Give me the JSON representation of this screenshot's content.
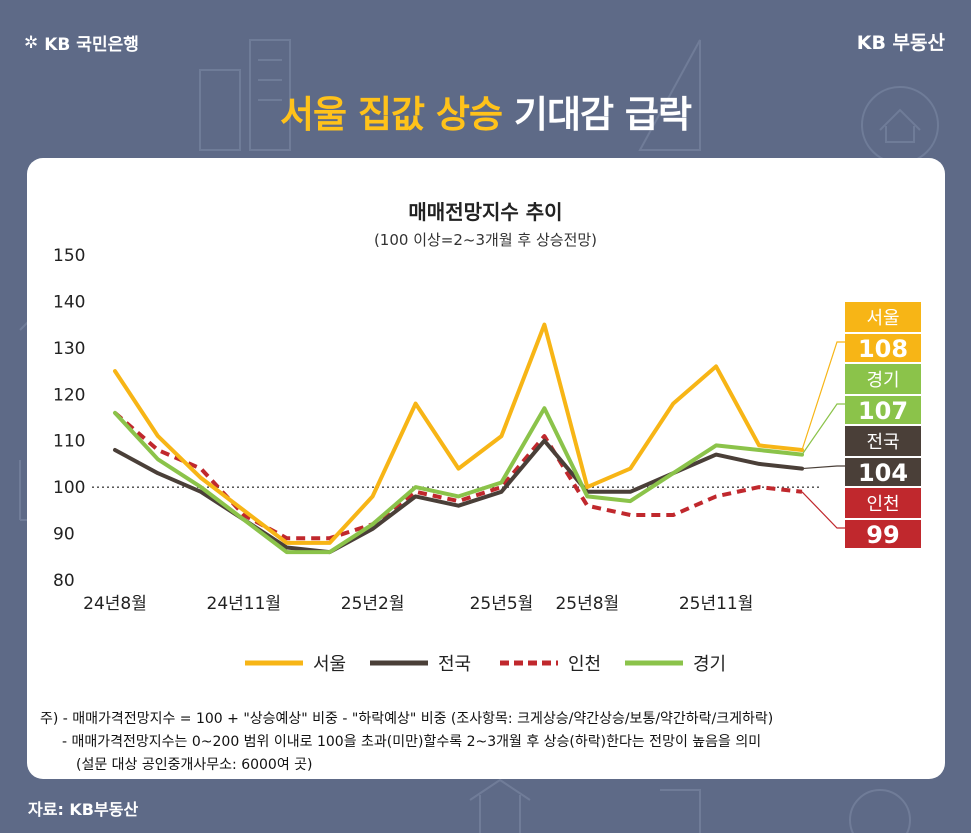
{
  "brand": {
    "left": "KB 국민은행",
    "right": "KB 부동산"
  },
  "headline": {
    "highlight": "서울 집값 상승",
    "rest": "기대감 급락"
  },
  "footnote": {
    "line1": "주) - 매매가격전망지수 = 100 + \"상승예상\" 비중 - \"하락예상\" 비중 (조사항목: 크게상승/약간상승/보통/약간하락/크게하락)",
    "line2": "- 매매가격전망지수는 0~200 범위 이내로 100을 초과(미만)할수록 2~3개월 후 상승(하락)한다는 전망이 높음을 의미",
    "line3": "(설문 대상 공인중개사무소: 6000여 곳)"
  },
  "source": "자료: KB부동산",
  "colors": {
    "서울": "#f7b516",
    "전국": "#4a3f38",
    "인천": "#c0282d",
    "경기": "#8bc34a"
  },
  "chart_data": {
    "type": "line",
    "title": "매매전망지수 추이",
    "subtitle": "(100 이상=2~3개월 후 상승전망)",
    "ylim": [
      80,
      150
    ],
    "yticks": [
      "150",
      "140",
      "130",
      "120",
      "110",
      "100",
      "90",
      "80"
    ],
    "x_labels": [
      {
        "label": "24년8월",
        "index": 0
      },
      {
        "label": "24년11월",
        "index": 3
      },
      {
        "label": "25년2월",
        "index": 6
      },
      {
        "label": "25년5월",
        "index": 9
      },
      {
        "label": "25년8월",
        "index": 11
      },
      {
        "label": "25년11월",
        "index": 14
      }
    ],
    "reference_line": 100,
    "series": [
      {
        "name": "서울",
        "end_label": "108",
        "style": "solid",
        "values": [
          125,
          111,
          102,
          95,
          88,
          88,
          98,
          118,
          104,
          111,
          135,
          100,
          104,
          118,
          126,
          109,
          108
        ]
      },
      {
        "name": "전국",
        "end_label": "104",
        "style": "solid",
        "values": [
          108,
          103,
          99,
          93,
          87,
          86,
          91,
          98,
          96,
          99,
          110,
          99,
          99,
          103,
          107,
          105,
          104
        ]
      },
      {
        "name": "인천",
        "end_label": "99",
        "style": "dashed",
        "values": [
          116,
          108,
          104,
          94,
          89,
          89,
          92,
          99,
          97,
          100,
          111,
          96,
          94,
          94,
          98,
          100,
          99
        ]
      },
      {
        "name": "경기",
        "end_label": "107",
        "style": "solid",
        "values": [
          116,
          106,
          100,
          93,
          86,
          86,
          92,
          100,
          98,
          101,
          117,
          98,
          97,
          103,
          109,
          108,
          107
        ]
      }
    ],
    "legend_order": [
      "서울",
      "전국",
      "인천",
      "경기"
    ]
  }
}
